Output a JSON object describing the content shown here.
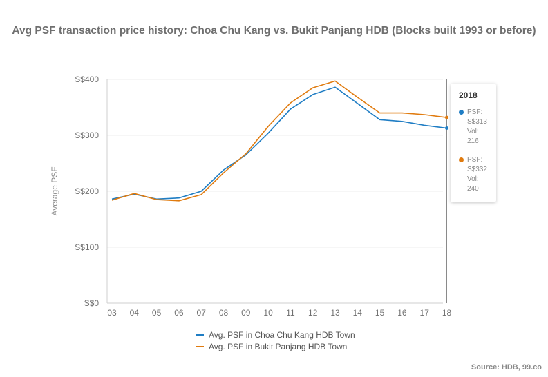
{
  "chart_data": {
    "type": "line",
    "title": "Avg PSF transaction price history: Choa Chu Kang vs. Bukit Panjang HDB (Blocks built 1993 or before)",
    "xlabel": "",
    "ylabel": "Average PSF",
    "categories": [
      "03",
      "04",
      "05",
      "06",
      "07",
      "08",
      "09",
      "10",
      "11",
      "12",
      "13",
      "14",
      "15",
      "16",
      "17",
      "18"
    ],
    "y_ticks": [
      "S$0",
      "S$100",
      "S$200",
      "S$300",
      "S$400"
    ],
    "ylim": [
      0,
      400
    ],
    "grid": true,
    "legend_position": "bottom",
    "series": [
      {
        "name": "Avg. PSF in Choa Chu Kang HDB Town",
        "color": "#1f7dc4",
        "values": [
          186,
          195,
          186,
          188,
          200,
          238,
          265,
          304,
          347,
          373,
          386,
          357,
          328,
          325,
          318,
          313
        ]
      },
      {
        "name": "Avg. PSF in Bukit Panjang HDB Town",
        "color": "#e07b0f",
        "values": [
          184,
          196,
          185,
          183,
          194,
          233,
          267,
          316,
          358,
          385,
          397,
          368,
          340,
          340,
          337,
          332
        ]
      }
    ]
  },
  "tooltip": {
    "year": "2018",
    "items": [
      {
        "color": "#1f7dc4",
        "psf_label": "PSF:",
        "psf_value": "S$313",
        "vol_label": "Vol:",
        "vol_value": "216"
      },
      {
        "color": "#e07b0f",
        "psf_label": "PSF:",
        "psf_value": "S$332",
        "vol_label": "Vol:",
        "vol_value": "240"
      }
    ]
  },
  "source": "Source: HDB, 99.co"
}
